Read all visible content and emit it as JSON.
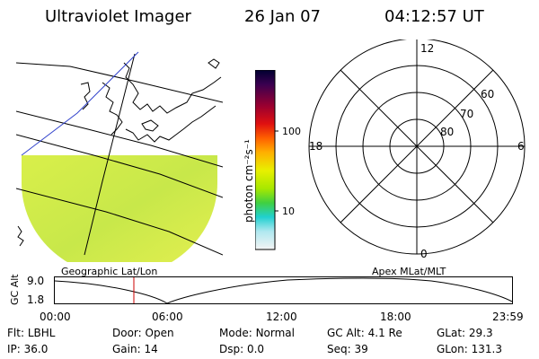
{
  "header": {
    "title": "Ultraviolet Imager",
    "date": "26 Jan 07",
    "time": "04:12:57 UT"
  },
  "map_panel": {
    "label": "Geographic Lat/Lon"
  },
  "colorbar": {
    "unit_label": "photon cm⁻²s⁻¹",
    "ticks": [
      "100",
      "10"
    ]
  },
  "polar_panel": {
    "label": "Apex MLat/MLT",
    "mlt_labels": {
      "top": "12",
      "right": "6",
      "bottom": "0",
      "left": "18"
    },
    "lat_labels": [
      "60",
      "70",
      "80"
    ]
  },
  "altitude_plot": {
    "ylabel": "GC Alt",
    "ymax_label": "9.0",
    "ymin_label": "1.8",
    "x_ticks": [
      "00:00",
      "06:00",
      "12:00",
      "18:00",
      "23:59"
    ],
    "marker_color": "#cc0000"
  },
  "status": {
    "row1": [
      {
        "label": "Flt:",
        "value": "LBHL"
      },
      {
        "label": "Door:",
        "value": "Open"
      },
      {
        "label": "Mode:",
        "value": "Normal"
      },
      {
        "label": "GC Alt:",
        "value": "4.1 Re"
      },
      {
        "label": "GLat:",
        "value": "29.3"
      }
    ],
    "row2": [
      {
        "label": "IP:",
        "value": "36.0"
      },
      {
        "label": "Gain:",
        "value": "14"
      },
      {
        "label": "Dsp:",
        "value": "0.0"
      },
      {
        "label": "Seq:",
        "value": "39"
      },
      {
        "label": "GLon:",
        "value": "131.3"
      }
    ]
  }
}
